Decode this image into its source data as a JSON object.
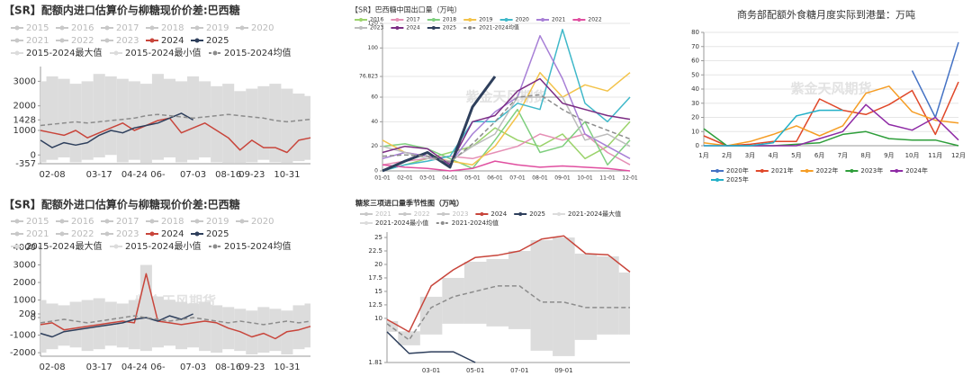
{
  "chart_data": [
    {
      "type": "line",
      "title": "【SR】配额内进口估算价与柳糖现价价差:巴西糖",
      "watermark": "紫金天风期货",
      "legend_inactive": [
        "2015",
        "2016",
        "2017",
        "2018",
        "2019",
        "2020",
        "2021",
        "2022",
        "2023"
      ],
      "legend_inactive_color": "#c8c8c8",
      "categories": [
        null,
        "02-08",
        null,
        null,
        null,
        "03-17",
        null,
        null,
        "04-24",
        null,
        "06-",
        null,
        null,
        "07-03",
        null,
        null,
        "08-16",
        null,
        "09-23",
        null,
        null,
        "10-31",
        null,
        null
      ],
      "series": [
        {
          "name": "2024",
          "color": "#c8453b",
          "style": "solid",
          "values": [
            1000,
            900,
            800,
            1000,
            700,
            900,
            1100,
            1300,
            1000,
            1200,
            1400,
            1500,
            900,
            1100,
            1300,
            1000,
            700,
            200,
            600,
            300,
            300,
            100,
            600,
            700
          ]
        },
        {
          "name": "2025",
          "color": "#2e3f5c",
          "style": "solid",
          "values": [
            600,
            300,
            500,
            400,
            500,
            800,
            1000,
            900,
            1100,
            1200,
            1300,
            1500,
            1700,
            1428,
            null,
            null,
            null,
            null,
            null,
            null,
            null,
            null,
            null,
            null
          ]
        },
        {
          "name": "2015-2024最大值",
          "color": "#dcdcdc",
          "style": "band-upper",
          "values": [
            3000,
            3200,
            3100,
            2900,
            3000,
            3300,
            3200,
            3100,
            3000,
            2900,
            3300,
            3100,
            3000,
            3200,
            3000,
            2800,
            2900,
            2600,
            2700,
            2800,
            2900,
            2700,
            2500,
            2400
          ]
        },
        {
          "name": "2015-2024最小值",
          "color": "#dcdcdc",
          "style": "band-lower",
          "values": [
            -300,
            -200,
            -100,
            -300,
            -200,
            -100,
            0,
            -300,
            -200,
            -350,
            -200,
            -100,
            -300,
            -200,
            -100,
            -300,
            -350,
            -350,
            -300,
            -200,
            -300,
            -350,
            -250,
            -200
          ]
        },
        {
          "name": "2015-2024均值",
          "color": "#8c8c8c",
          "style": "dashed",
          "values": [
            1200,
            1250,
            1300,
            1350,
            1300,
            1350,
            1400,
            1450,
            1500,
            1600,
            1650,
            1600,
            1550,
            1500,
            1550,
            1600,
            1650,
            1600,
            1550,
            1500,
            1400,
            1350,
            1400,
            1450
          ]
        }
      ],
      "ylim": [
        -357,
        3600
      ],
      "yticks": [
        -357,
        0,
        1000,
        1428,
        2000,
        3000
      ],
      "grid": false
    },
    {
      "type": "line",
      "title": "【SR】配额外进口估算价与柳糖现价价差:巴西糖",
      "watermark": "紫金天风期货",
      "legend_inactive": [
        "2015",
        "2016",
        "2017",
        "2018",
        "2019",
        "2020",
        "2021",
        "2022",
        "2023"
      ],
      "legend_inactive_color": "#c8c8c8",
      "categories": [
        null,
        "02-08",
        null,
        null,
        null,
        "03-17",
        null,
        null,
        "04-24",
        null,
        "06-",
        null,
        null,
        "07-03",
        null,
        null,
        "08-16",
        null,
        "09-23",
        null,
        null,
        "10-31",
        null,
        null
      ],
      "series": [
        {
          "name": "2024",
          "color": "#c8453b",
          "style": "solid",
          "values": [
            -400,
            -300,
            -700,
            -600,
            -500,
            -400,
            -300,
            -200,
            -300,
            2500,
            -200,
            -300,
            -400,
            -300,
            -200,
            -300,
            -600,
            -800,
            -1100,
            -900,
            -1200,
            -800,
            -700,
            -500
          ]
        },
        {
          "name": "2025",
          "color": "#2e3f5c",
          "style": "solid",
          "values": [
            -900,
            -1100,
            -800,
            -700,
            -600,
            -500,
            -400,
            -300,
            -100,
            0,
            -200,
            100,
            -100,
            209,
            null,
            null,
            null,
            null,
            null,
            null,
            null,
            null,
            null,
            null
          ]
        },
        {
          "name": "2015-2024最大值",
          "color": "#dcdcdc",
          "style": "band-upper",
          "values": [
            1000,
            800,
            700,
            900,
            1000,
            1100,
            900,
            800,
            1000,
            3000,
            1200,
            1000,
            900,
            800,
            900,
            700,
            600,
            500,
            400,
            600,
            500,
            400,
            700,
            800
          ]
        },
        {
          "name": "2015-2024最小值",
          "color": "#dcdcdc",
          "style": "band-lower",
          "values": [
            -2000,
            -1800,
            -1600,
            -1700,
            -1900,
            -1800,
            -1600,
            -1700,
            -1800,
            -1900,
            -1700,
            -1600,
            -1800,
            -1700,
            -1900,
            -2000,
            -1800,
            -1900,
            -2100,
            -2000,
            -1900,
            -2100,
            -1800,
            -1700
          ]
        },
        {
          "name": "2015-2024均值",
          "color": "#8c8c8c",
          "style": "dashed",
          "values": [
            -300,
            -200,
            -100,
            -200,
            -300,
            -200,
            -100,
            0,
            100,
            0,
            -100,
            -200,
            -100,
            0,
            -100,
            -200,
            -300,
            -200,
            -300,
            -400,
            -300,
            -200,
            -300,
            -200
          ]
        }
      ],
      "ylim": [
        -2200,
        4000
      ],
      "yticks": [
        -2000,
        -1000,
        0,
        209,
        1000,
        2000,
        3000,
        4000
      ],
      "grid": false
    },
    {
      "type": "line",
      "title": "【SR】巴西糖中国出口量（万吨）",
      "watermark": "紫金天风期货",
      "categories": [
        "01-01",
        "02-01",
        "03-01",
        "04-01",
        "05-01",
        "06-01",
        "07-01",
        "08-01",
        "09-01",
        "10-01",
        "11-01",
        "12-01"
      ],
      "series": [
        {
          "name": "2016",
          "color": "#9bd36b",
          "style": "solid",
          "values": [
            0,
            5,
            10,
            15,
            20,
            35,
            25,
            20,
            30,
            10,
            20,
            40
          ]
        },
        {
          "name": "2017",
          "color": "#e58fb5",
          "style": "solid",
          "values": [
            5,
            8,
            10,
            12,
            10,
            15,
            20,
            30,
            25,
            30,
            15,
            5
          ]
        },
        {
          "name": "2018",
          "color": "#7fcf7f",
          "style": "solid",
          "values": [
            20,
            22,
            18,
            10,
            2,
            25,
            50,
            15,
            20,
            40,
            5,
            25
          ]
        },
        {
          "name": "2019",
          "color": "#f3c34a",
          "style": "solid",
          "values": [
            25,
            15,
            12,
            8,
            5,
            20,
            45,
            80,
            60,
            70,
            65,
            80
          ]
        },
        {
          "name": "2020",
          "color": "#3fb8c9",
          "style": "solid",
          "values": [
            0,
            5,
            8,
            12,
            40,
            40,
            55,
            50,
            115,
            55,
            40,
            60
          ]
        },
        {
          "name": "2021",
          "color": "#a77fd6",
          "style": "solid",
          "values": [
            10,
            15,
            12,
            6,
            30,
            48,
            60,
            110,
            75,
            30,
            20,
            10
          ]
        },
        {
          "name": "2022",
          "color": "#e04fa0",
          "style": "solid",
          "values": [
            5,
            3,
            2,
            0,
            2,
            8,
            5,
            3,
            4,
            3,
            2,
            0
          ]
        },
        {
          "name": "2023",
          "color": "#bdbdbd",
          "style": "solid",
          "values": [
            20,
            15,
            10,
            8,
            20,
            30,
            60,
            60,
            60,
            25,
            30,
            20
          ]
        },
        {
          "name": "2024",
          "color": "#7b2c83",
          "style": "solid",
          "values": [
            15,
            20,
            18,
            5,
            40,
            45,
            65,
            75,
            55,
            50,
            45,
            42
          ]
        },
        {
          "name": "2025",
          "color": "#2e3f5c",
          "style": "solid",
          "line_width": 3,
          "values": [
            0,
            8,
            15,
            3,
            52,
            76.823,
            null,
            null,
            null,
            null,
            null,
            null
          ]
        },
        {
          "name": "2021-2024均值",
          "color": "#8c8c8c",
          "style": "dashed",
          "values": [
            12,
            13,
            12,
            7,
            22,
            40,
            60,
            62,
            50,
            40,
            33,
            26
          ]
        }
      ],
      "ylim": [
        0,
        120
      ],
      "yticks": [
        0,
        20,
        40,
        60,
        76.823,
        100,
        120
      ],
      "grid": true
    },
    {
      "type": "line",
      "title": "糖浆三项进口量季节性图（万吨）",
      "watermark": "紫金天风期货",
      "legend_inactive": [
        "2021",
        "2022",
        "2023"
      ],
      "legend_inactive_color": "#c8c8c8",
      "categories": [
        null,
        null,
        "03-01",
        null,
        "05-01",
        null,
        "07-01",
        null,
        "09-01",
        null,
        null,
        null
      ],
      "series": [
        {
          "name": "2024",
          "color": "#c8453b",
          "style": "solid",
          "values": [
            9.8,
            7.5,
            16,
            19,
            21.3,
            21.7,
            22.5,
            24.7,
            25.3,
            22,
            21.8,
            18.6
          ]
        },
        {
          "name": "2025",
          "color": "#2e3f5c",
          "style": "solid",
          "values": [
            7.5,
            3.5,
            3.8,
            3.8,
            1.81,
            null,
            null,
            null,
            null,
            null,
            null,
            null
          ]
        },
        {
          "name": "2021-2024最大值",
          "color": "#dcdcdc",
          "style": "band-upper",
          "values": [
            9.5,
            7.6,
            14,
            17.5,
            20.5,
            21,
            22.5,
            24.5,
            25,
            22,
            21.5,
            18.5
          ]
        },
        {
          "name": "2021-2024最小值",
          "color": "#dcdcdc",
          "style": "band-lower",
          "values": [
            7.5,
            5,
            7,
            9,
            9,
            8.5,
            8,
            4,
            3,
            6,
            7,
            7
          ]
        },
        {
          "name": "2021-2024均值",
          "color": "#8c8c8c",
          "style": "dashed",
          "values": [
            9,
            6,
            12,
            14,
            15,
            16,
            16,
            13,
            13,
            12,
            12,
            12
          ]
        }
      ],
      "ylim": [
        1.81,
        26
      ],
      "yticks": [
        1.81,
        10,
        12.5,
        15,
        17.5,
        20,
        22.5,
        25
      ],
      "grid": false
    },
    {
      "type": "line",
      "title": "商务部配额外食糖月度实际到港量：万吨",
      "watermark": "紫金天风期货",
      "categories": [
        "1月",
        "2月",
        "3月",
        "4月",
        "5月",
        "6月",
        "7月",
        "8月",
        "9月",
        "10月",
        "11月",
        "12月"
      ],
      "series": [
        {
          "name": "2020年",
          "color": "#4472c4",
          "style": "solid",
          "values": [
            null,
            null,
            null,
            null,
            null,
            null,
            null,
            null,
            null,
            53,
            20,
            73
          ]
        },
        {
          "name": "2021年",
          "color": "#e0482a",
          "style": "solid",
          "values": [
            7,
            0,
            1,
            3,
            3,
            33,
            25,
            22,
            29,
            39,
            8,
            45
          ]
        },
        {
          "name": "2022年",
          "color": "#f59d25",
          "style": "solid",
          "values": [
            2,
            0,
            3,
            8,
            14,
            7,
            14,
            37,
            42,
            24,
            18,
            16
          ]
        },
        {
          "name": "2023年",
          "color": "#2e9e3a",
          "style": "solid",
          "values": [
            12,
            0,
            0,
            0,
            1,
            2,
            8,
            10,
            5,
            4,
            4,
            0
          ]
        },
        {
          "name": "2024年",
          "color": "#8e2aa5",
          "style": "solid",
          "values": [
            0,
            0,
            0,
            0,
            0,
            5,
            10,
            29,
            15,
            11,
            20,
            4
          ]
        },
        {
          "name": "2025年",
          "color": "#23b0c8",
          "style": "solid",
          "values": [
            0,
            0,
            0,
            2,
            21,
            25,
            25,
            null,
            null,
            null,
            null,
            null
          ]
        }
      ],
      "ylim": [
        0,
        80
      ],
      "yticks": [
        0,
        10,
        20,
        30,
        40,
        50,
        60,
        70,
        80
      ],
      "grid": true
    }
  ]
}
